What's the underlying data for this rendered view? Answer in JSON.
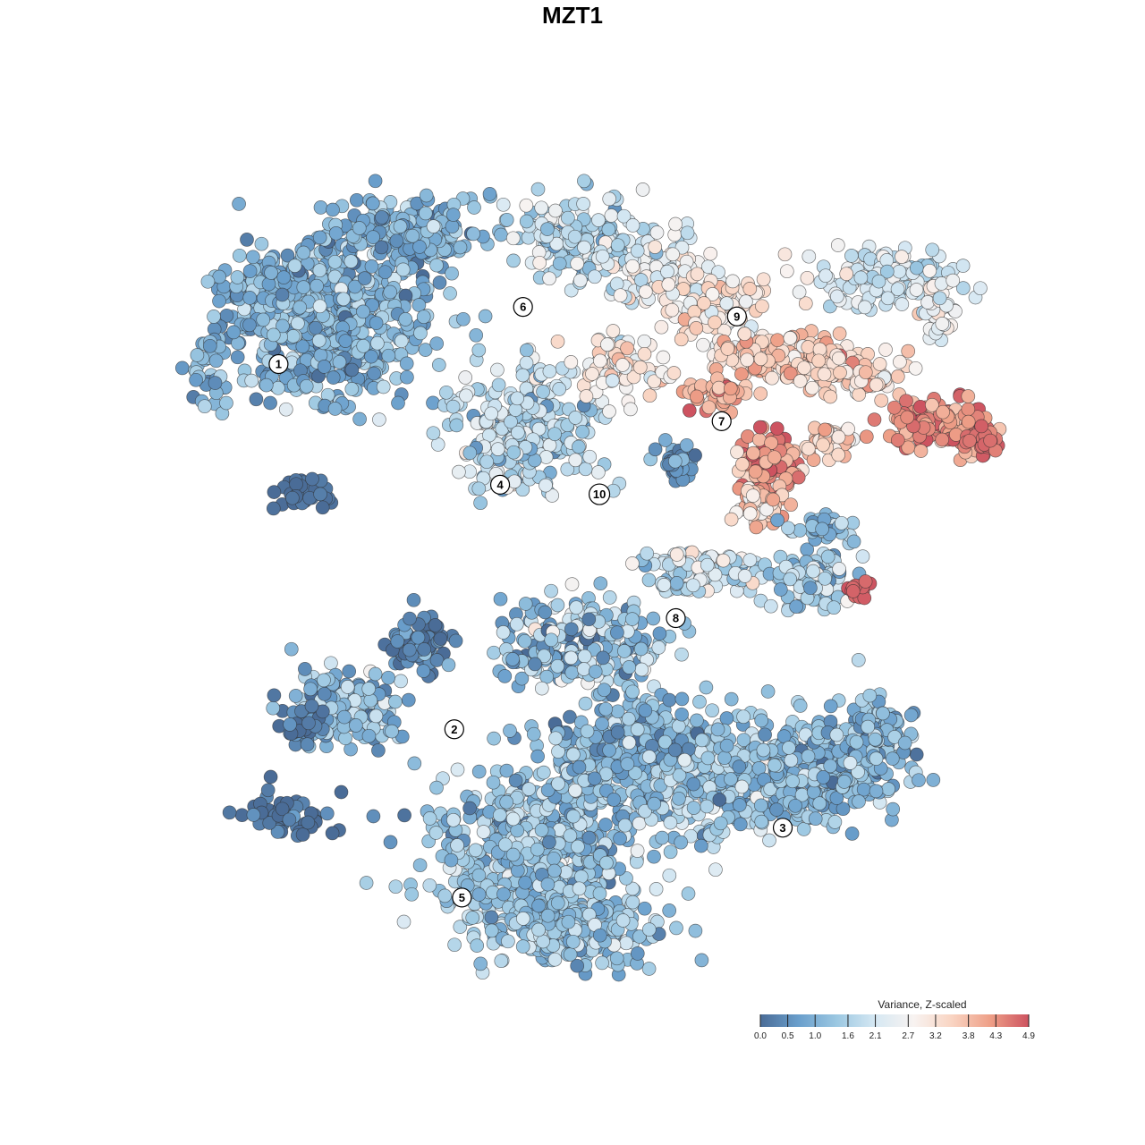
{
  "chart_data": {
    "type": "scatter",
    "title": "MZT1",
    "xlabel": "",
    "ylabel": "",
    "grid": false,
    "legend_placement": "bottom-right",
    "colorbar": {
      "title": "Variance, Z-scaled",
      "ticks": [
        "0.0",
        "0.5",
        "1.0",
        "1.6",
        "2.1",
        "2.7",
        "3.2",
        "3.8",
        "4.3",
        "4.9"
      ],
      "tick_values": [
        0.0,
        0.5,
        1.0,
        1.6,
        2.1,
        2.7,
        3.2,
        3.8,
        4.3,
        4.9
      ],
      "range": [
        0.0,
        4.9
      ],
      "colors": [
        "#4a6c97",
        "#6a9fcc",
        "#9cc8e2",
        "#d6e8f3",
        "#f8f3f1",
        "#f9d4c2",
        "#ee9f87",
        "#cd5360"
      ]
    },
    "clusters": [
      {
        "label": "1",
        "x": 0.1,
        "y": 0.6,
        "mean": 1.0
      },
      {
        "label": "2",
        "x": 0.33,
        "y": -0.55,
        "mean": 0.7
      },
      {
        "label": "3",
        "x": 0.76,
        "y": -0.86,
        "mean": 1.1
      },
      {
        "label": "4",
        "x": 0.39,
        "y": 0.22,
        "mean": 2.0
      },
      {
        "label": "5",
        "x": 0.34,
        "y": -1.08,
        "mean": 1.4
      },
      {
        "label": "6",
        "x": 0.42,
        "y": 0.78,
        "mean": 1.9
      },
      {
        "label": "7",
        "x": 0.68,
        "y": 0.42,
        "mean": 3.6
      },
      {
        "label": "8",
        "x": 0.62,
        "y": -0.2,
        "mean": 2.3
      },
      {
        "label": "9",
        "x": 0.7,
        "y": 0.75,
        "mean": 2.1
      },
      {
        "label": "10",
        "x": 0.52,
        "y": 0.19,
        "mean": 0.6
      }
    ]
  }
}
